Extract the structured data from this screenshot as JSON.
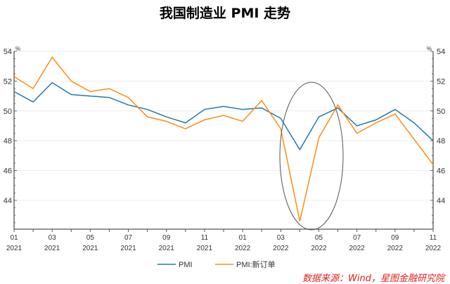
{
  "chart_data": {
    "type": "line",
    "title": "我国制造业 PMI 走势",
    "unit_left": "%",
    "unit_right": "%",
    "x": [
      "2021-01",
      "2021-02",
      "2021-03",
      "2021-04",
      "2021-05",
      "2021-06",
      "2021-07",
      "2021-08",
      "2021-09",
      "2021-10",
      "2021-11",
      "2021-12",
      "2022-01",
      "2022-02",
      "2022-03",
      "2022-04",
      "2022-05",
      "2022-06",
      "2022-07",
      "2022-08",
      "2022-09",
      "2022-10",
      "2022-11"
    ],
    "x_tick_labels": [
      {
        "month": "01",
        "year": "2021"
      },
      {
        "month": "03",
        "year": "2021"
      },
      {
        "month": "05",
        "year": "2021"
      },
      {
        "month": "07",
        "year": "2021"
      },
      {
        "month": "09",
        "year": "2021"
      },
      {
        "month": "11",
        "year": "2021"
      },
      {
        "month": "01",
        "year": "2022"
      },
      {
        "month": "03",
        "year": "2022"
      },
      {
        "month": "05",
        "year": "2022"
      },
      {
        "month": "07",
        "year": "2022"
      },
      {
        "month": "09",
        "year": "2022"
      },
      {
        "month": "11",
        "year": "2022"
      }
    ],
    "y_ticks": [
      "54",
      "52",
      "50",
      "48",
      "46",
      "44"
    ],
    "ylim": [
      42.1,
      54
    ],
    "grid": true,
    "series": [
      {
        "name": "PMI",
        "color": "#2479a6",
        "values": [
          51.3,
          50.6,
          51.9,
          51.1,
          51.0,
          50.9,
          50.4,
          50.1,
          49.6,
          49.2,
          50.1,
          50.3,
          50.1,
          50.2,
          49.5,
          47.4,
          49.6,
          50.2,
          49.0,
          49.4,
          50.1,
          49.2,
          48.0
        ]
      },
      {
        "name": "PMI:新订单",
        "color": "#ff8c1a",
        "values": [
          52.3,
          51.5,
          53.6,
          52.0,
          51.3,
          51.5,
          50.9,
          49.6,
          49.3,
          48.8,
          49.4,
          49.7,
          49.3,
          50.7,
          48.8,
          42.6,
          48.2,
          50.4,
          48.5,
          49.2,
          49.8,
          48.1,
          46.4
        ]
      }
    ],
    "annotation": "ellipse around 2022-04",
    "legend_position": "bottom"
  },
  "source": "数据来源：Wind，星图金融研究院"
}
